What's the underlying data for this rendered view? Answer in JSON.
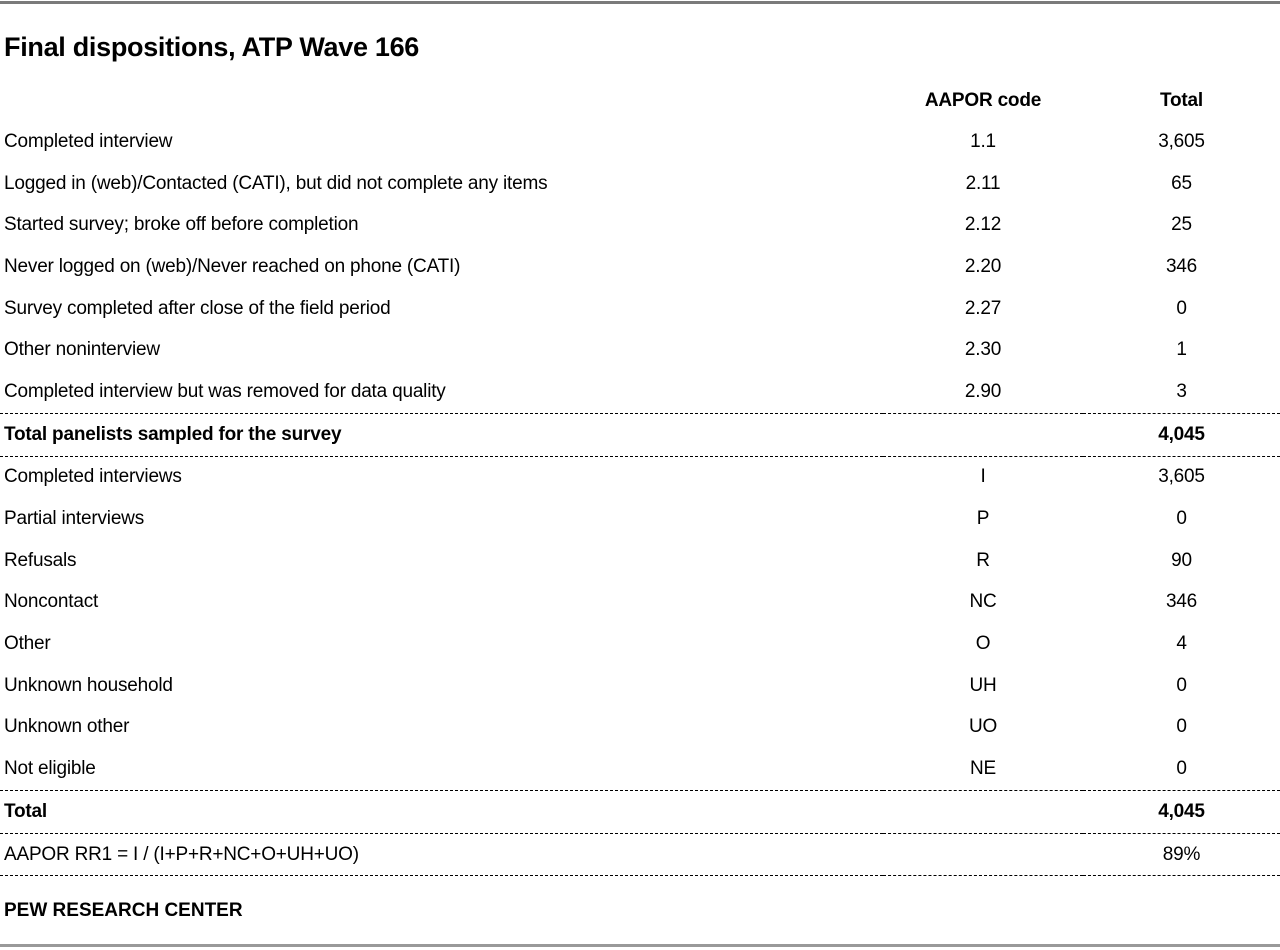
{
  "title": "Final dispositions, ATP Wave 166",
  "footer": "PEW RESEARCH CENTER",
  "colors": {
    "text": "#000000",
    "background": "#ffffff",
    "top_rule": "#7a7a7a",
    "bottom_rule": "#999999",
    "separator": "#000000"
  },
  "table": {
    "header": {
      "label": "",
      "code": "AAPOR code",
      "total": "Total"
    },
    "sections": [
      {
        "kind": "data",
        "rows": [
          {
            "label": "Completed interview",
            "code": "1.1",
            "total": "3,605"
          },
          {
            "label": "Logged in (web)/Contacted (CATI), but did not complete any items",
            "code": "2.11",
            "total": "65"
          },
          {
            "label": "Started survey; broke off before completion",
            "code": "2.12",
            "total": "25"
          },
          {
            "label": "Never logged on (web)/Never reached on phone (CATI)",
            "code": "2.20",
            "total": "346"
          },
          {
            "label": "Survey completed after close of the field period",
            "code": "2.27",
            "total": "0"
          },
          {
            "label": "Other noninterview",
            "code": "2.30",
            "total": "1"
          },
          {
            "label": "Completed interview but was removed for data quality",
            "code": "2.90",
            "total": "3"
          }
        ]
      },
      {
        "kind": "total",
        "rows": [
          {
            "label": "Total panelists sampled for the survey",
            "code": "",
            "total": "4,045"
          }
        ]
      },
      {
        "kind": "data",
        "rows": [
          {
            "label": "Completed interviews",
            "code": "I",
            "total": "3,605"
          },
          {
            "label": "Partial interviews",
            "code": "P",
            "total": "0"
          },
          {
            "label": "Refusals",
            "code": "R",
            "total": "90"
          },
          {
            "label": "Noncontact",
            "code": "NC",
            "total": "346"
          },
          {
            "label": "Other",
            "code": "O",
            "total": "4"
          },
          {
            "label": "Unknown household",
            "code": "UH",
            "total": "0"
          },
          {
            "label": "Unknown other",
            "code": "UO",
            "total": "0"
          },
          {
            "label": "Not eligible",
            "code": "NE",
            "total": "0"
          }
        ]
      },
      {
        "kind": "total",
        "rows": [
          {
            "label": "Total",
            "code": "",
            "total": "4,045"
          }
        ]
      },
      {
        "kind": "formula",
        "rows": [
          {
            "label": "AAPOR RR1 = I / (I+P+R+NC+O+UH+UO)",
            "code": "",
            "total": "89%"
          }
        ]
      }
    ]
  },
  "chart_data": {
    "type": "table",
    "title": "Final dispositions, ATP Wave 166",
    "columns": [
      "",
      "AAPOR code",
      "Total"
    ],
    "rows": [
      [
        "Completed interview",
        "1.1",
        "3,605"
      ],
      [
        "Logged in (web)/Contacted (CATI), but did not complete any items",
        "2.11",
        "65"
      ],
      [
        "Started survey; broke off before completion",
        "2.12",
        "25"
      ],
      [
        "Never logged on (web)/Never reached on phone (CATI)",
        "2.20",
        "346"
      ],
      [
        "Survey completed after close of the field period",
        "2.27",
        "0"
      ],
      [
        "Other noninterview",
        "2.30",
        "1"
      ],
      [
        "Completed interview but was removed for data quality",
        "2.90",
        "3"
      ],
      [
        "Total panelists sampled for the survey",
        "",
        "4,045"
      ],
      [
        "Completed interviews",
        "I",
        "3,605"
      ],
      [
        "Partial interviews",
        "P",
        "0"
      ],
      [
        "Refusals",
        "R",
        "90"
      ],
      [
        "Noncontact",
        "NC",
        "346"
      ],
      [
        "Other",
        "O",
        "4"
      ],
      [
        "Unknown household",
        "UH",
        "0"
      ],
      [
        "Unknown other",
        "UO",
        "0"
      ],
      [
        "Not eligible",
        "NE",
        "0"
      ],
      [
        "Total",
        "",
        "4,045"
      ],
      [
        "AAPOR RR1 = I / (I+P+R+NC+O+UH+UO)",
        "",
        "89%"
      ]
    ],
    "source": "PEW RESEARCH CENTER"
  }
}
